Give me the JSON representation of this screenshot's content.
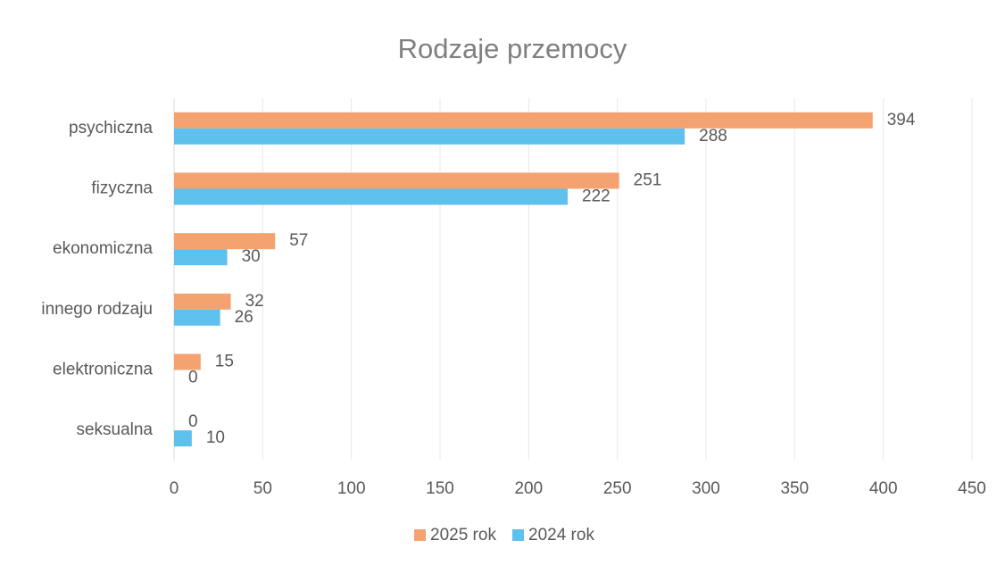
{
  "chart_data": {
    "type": "bar",
    "orientation": "horizontal",
    "title": "Rodzaje przemocy",
    "categories": [
      "psychiczna",
      "fizyczna",
      "ekonomiczna",
      "innego rodzaju",
      "elektroniczna",
      "seksualna"
    ],
    "series": [
      {
        "name": "2025 rok",
        "color": "#f4a26f",
        "values": [
          394,
          251,
          57,
          32,
          15,
          0
        ]
      },
      {
        "name": "2024 rok",
        "color": "#5ec0ec",
        "values": [
          288,
          222,
          30,
          26,
          0,
          10
        ]
      }
    ],
    "xlim": [
      0,
      450
    ],
    "xticks": [
      0,
      50,
      100,
      150,
      200,
      250,
      300,
      350,
      400,
      450
    ],
    "grid": true,
    "legend": "bottom"
  }
}
